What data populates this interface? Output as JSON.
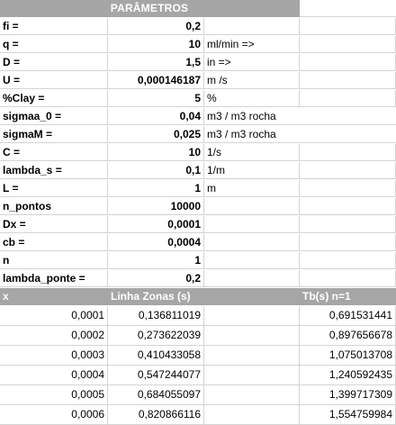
{
  "sheet_title": "PARÂMETROS",
  "params": [
    {
      "label": "fi =",
      "value": "0,2",
      "unit": ""
    },
    {
      "label": "q =",
      "value": "10",
      "unit": "ml/min =>"
    },
    {
      "label": "D =",
      "value": "1,5",
      "unit": "in =>"
    },
    {
      "label": "U =",
      "value": "0,000146187",
      "unit": "m /s"
    },
    {
      "label": "%Clay =",
      "value": "5",
      "unit": "%"
    },
    {
      "label": "sigmaa_0 =",
      "value": "0,04",
      "unit": "m3 / m3 rocha"
    },
    {
      "label": "sigmaM =",
      "value": "0,025",
      "unit": "m3 / m3 rocha"
    },
    {
      "label": "C =",
      "value": "10",
      "unit": "1/s"
    },
    {
      "label": "lambda_s =",
      "value": "0,1",
      "unit": "1/m"
    },
    {
      "label": "L =",
      "value": "1",
      "unit": "m"
    },
    {
      "label": "n_pontos",
      "value": "10000",
      "unit": ""
    },
    {
      "label": "Dx =",
      "value": "0,0001",
      "unit": ""
    },
    {
      "label": "cb =",
      "value": "0,0004",
      "unit": ""
    },
    {
      "label": "n",
      "value": "1",
      "unit": ""
    },
    {
      "label": "lambda_ponte =",
      "value": "0,2",
      "unit": ""
    }
  ],
  "table": {
    "headers": [
      "x",
      "Linha Zonas (s)",
      "",
      "Tb(s) n=1"
    ],
    "rows": [
      [
        "0,0001",
        "0,136811019",
        "",
        "0,691531441"
      ],
      [
        "0,0002",
        "0,273622039",
        "",
        "0,897656678"
      ],
      [
        "0,0003",
        "0,410433058",
        "",
        "1,075013708"
      ],
      [
        "0,0004",
        "0,547244077",
        "",
        "1,240592435"
      ],
      [
        "0,0005",
        "0,684055097",
        "",
        "1,399717309"
      ],
      [
        "0,0006",
        "0,820866116",
        "",
        "1,554759984"
      ]
    ]
  }
}
